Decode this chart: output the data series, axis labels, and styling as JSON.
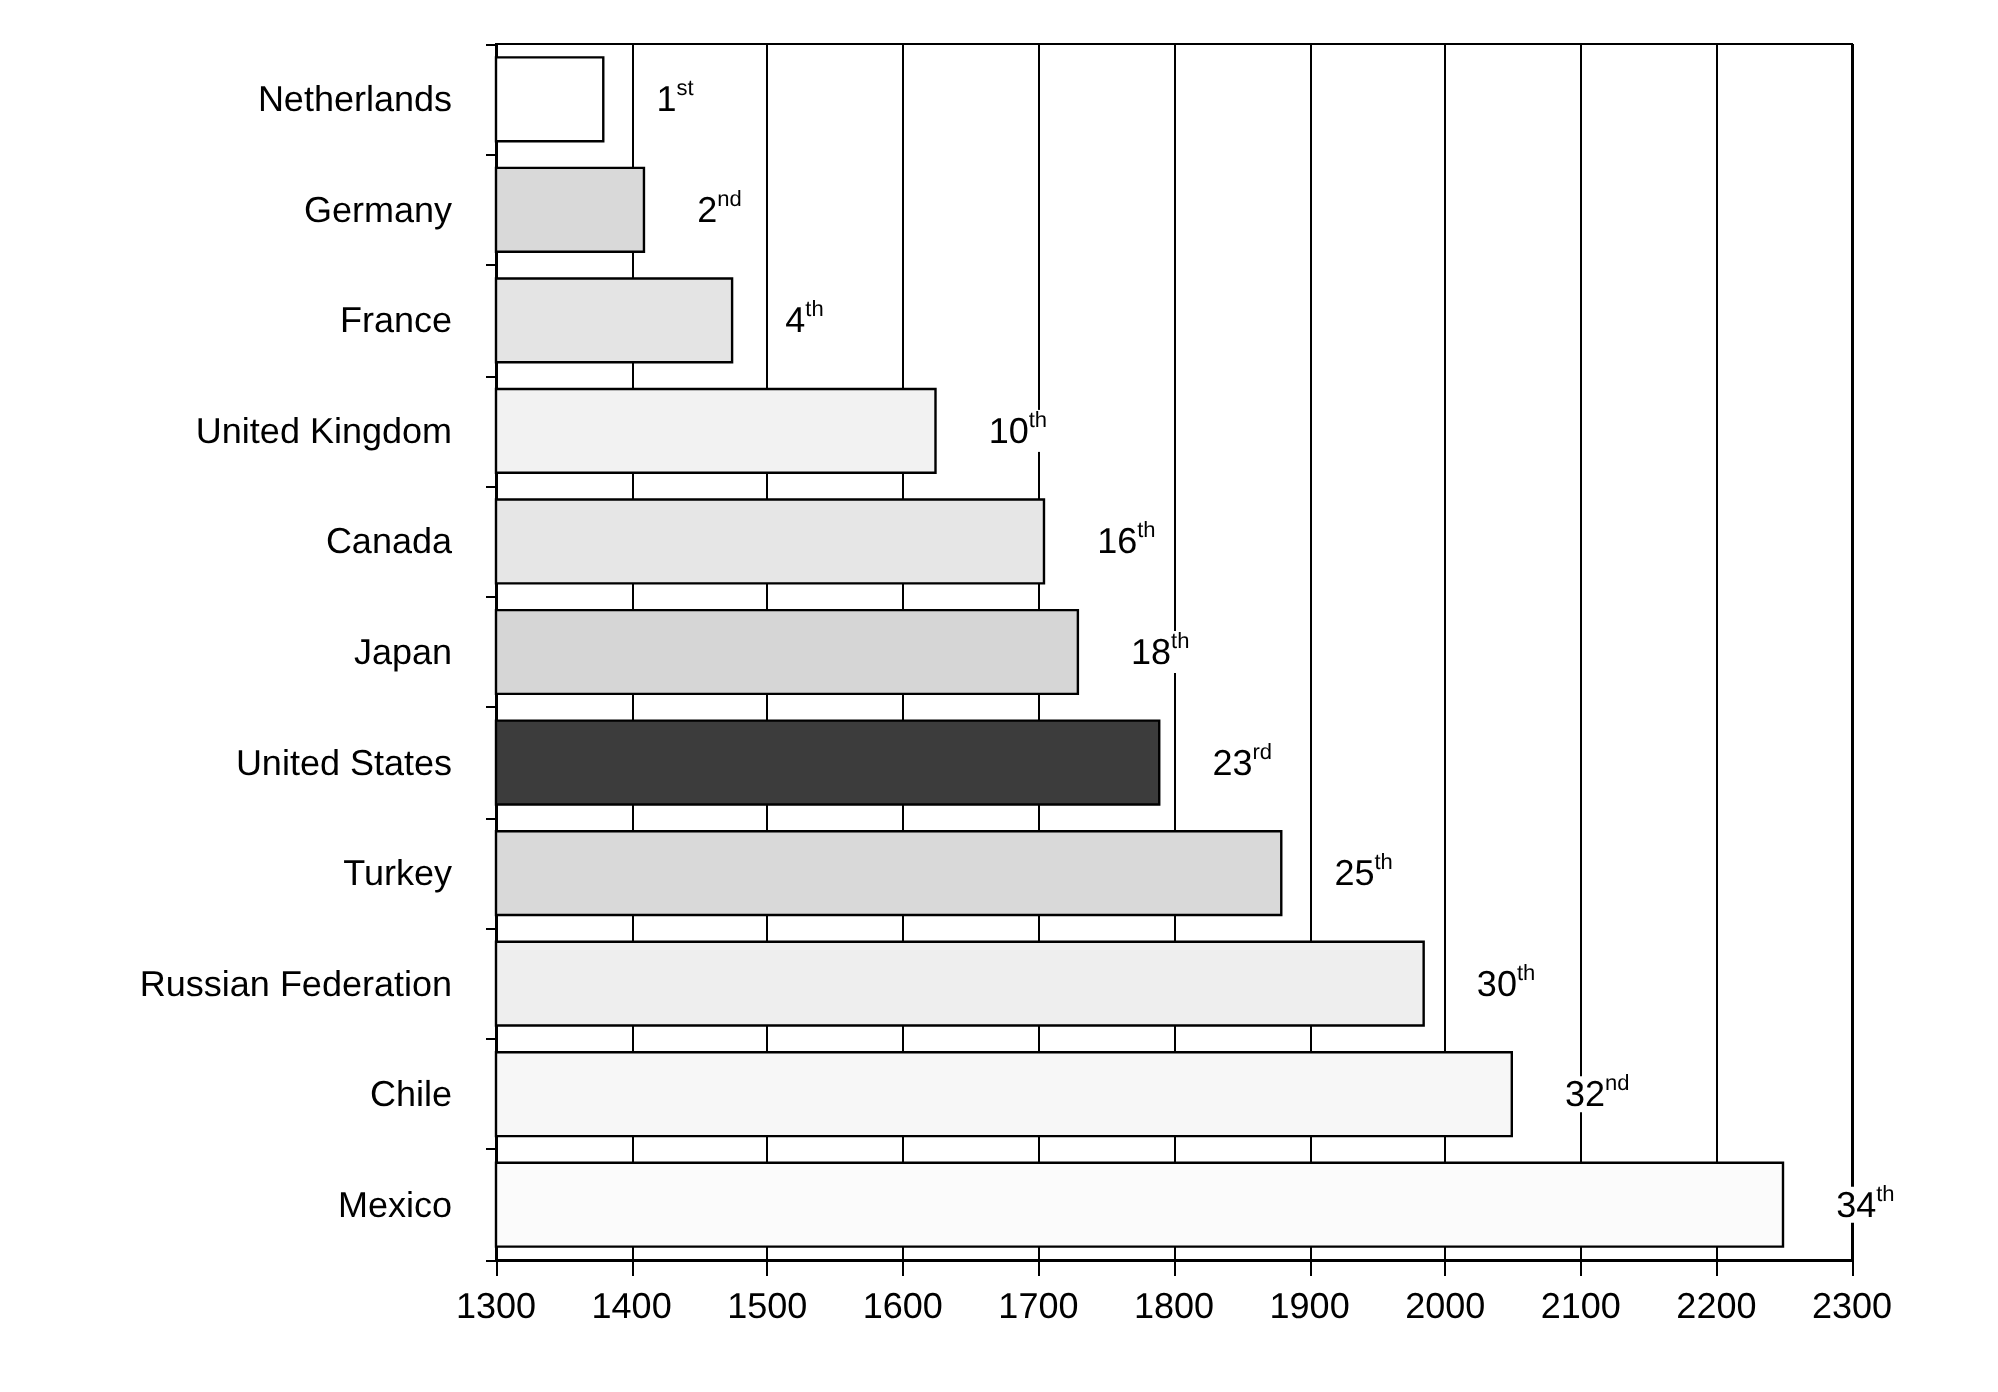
{
  "chart_data": {
    "type": "bar",
    "orientation": "horizontal",
    "categories": [
      "Netherlands",
      "Germany",
      "France",
      "United Kingdom",
      "Canada",
      "Japan",
      "United States",
      "Turkey",
      "Russian Federation",
      "Chile",
      "Mexico"
    ],
    "values": [
      1380,
      1410,
      1475,
      1625,
      1705,
      1730,
      1790,
      1880,
      1985,
      2050,
      2250
    ],
    "colors": [
      "#ffffff",
      "#d9d9d9",
      "#e4e4e4",
      "#f2f2f2",
      "#e6e6e6",
      "#d6d6d6",
      "#3c3c3c",
      "#d9d9d9",
      "#eeeeee",
      "#f7f7f7",
      "#fbfbfb"
    ],
    "annotations": [
      {
        "text": "1$^{st}$",
        "x": 1380,
        "y": "Netherlands"
      },
      {
        "text": "2$^{nd}$",
        "x": 1410,
        "y": "Germany"
      },
      {
        "text": "4$^{th}$",
        "x": 1475,
        "y": "France"
      },
      {
        "text": "10$^{th}$",
        "x": 1625,
        "y": "United Kingdom"
      },
      {
        "text": "16$^{th}$",
        "x": 1705,
        "y": "Canada"
      },
      {
        "text": "18$^{th}$",
        "x": 1730,
        "y": "Japan"
      },
      {
        "text": "23$^{rd}$",
        "x": 1790,
        "y": "United States"
      },
      {
        "text": "25$^{th}$",
        "x": 1880,
        "y": "Turkey"
      },
      {
        "text": "30$^{th}$",
        "x": 1985,
        "y": "Russian Federation"
      },
      {
        "text": "32$^{nd}$",
        "x": 2050,
        "y": "Chile"
      },
      {
        "text": "34$^{th}$",
        "x": 2250,
        "y": "Mexico"
      }
    ],
    "xlim": [
      1300,
      2300
    ],
    "xticks": [
      1300,
      1400,
      1500,
      1600,
      1700,
      1800,
      1900,
      2000,
      2100,
      2200,
      2300
    ],
    "grid": "x"
  }
}
